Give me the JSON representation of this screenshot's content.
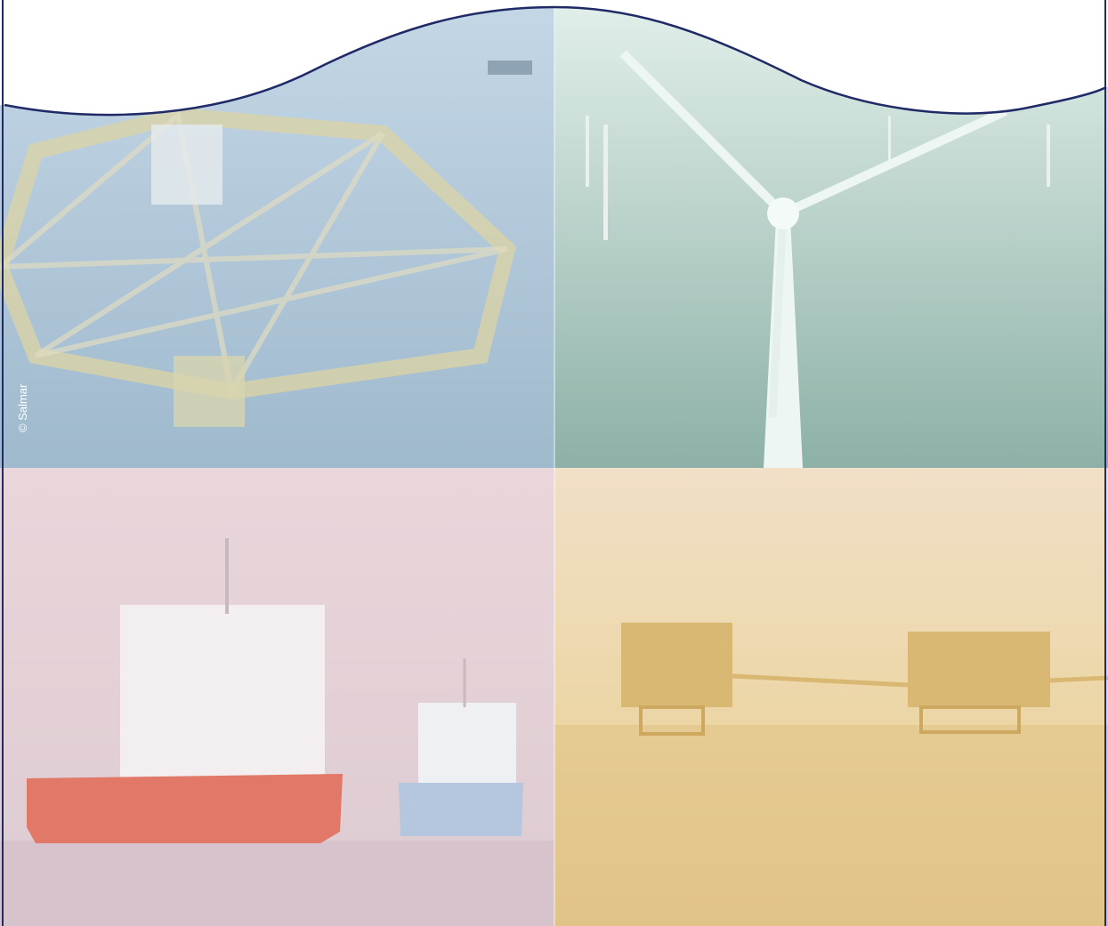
{
  "credit": "© Salmar"
}
